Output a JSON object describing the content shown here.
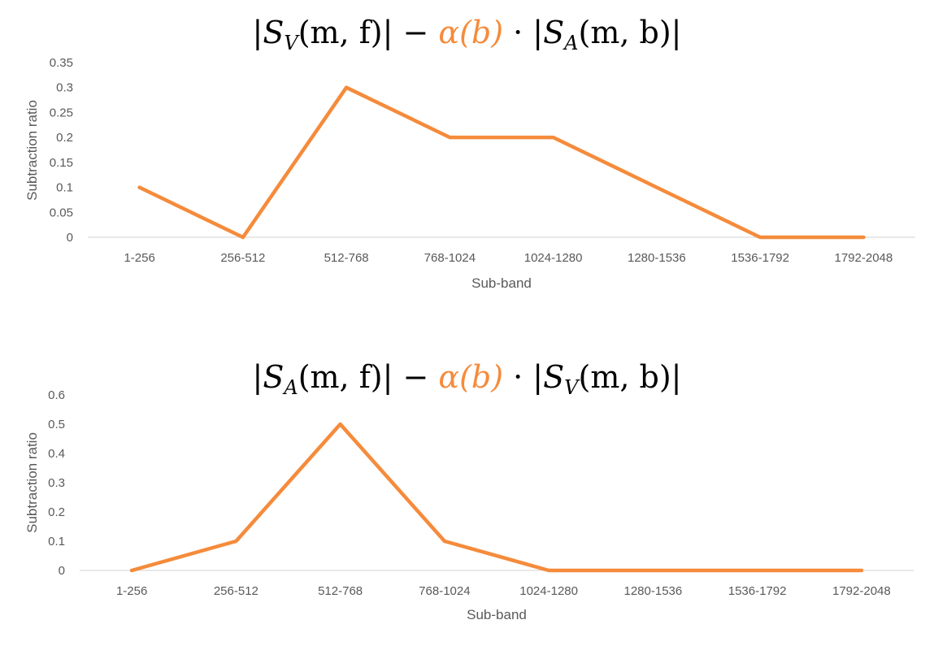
{
  "chart_data": [
    {
      "type": "line",
      "title": {
        "prefix": "|",
        "s1": "S",
        "s1_sub": "V",
        "arg1": "(m, f)| − ",
        "alpha": "α(b)",
        "mid": " · |",
        "s2": "S",
        "s2_sub": "A",
        "arg2": "(m, b)|"
      },
      "xlabel": "Sub-band",
      "ylabel": "Subtraction ratio",
      "categories": [
        "1-256",
        "256-512",
        "512-768",
        "768-1024",
        "1024-1280",
        "1280-1536",
        "1536-1792",
        "1792-2048"
      ],
      "values": [
        0.1,
        0,
        0.3,
        0.2,
        0.2,
        0.1,
        0,
        0
      ],
      "yticks": [
        "0",
        "0.05",
        "0.1",
        "0.15",
        "0.2",
        "0.25",
        "0.3",
        "0.35"
      ],
      "ylim": [
        0,
        0.35
      ],
      "grid": false,
      "line_color": "#f58b3b"
    },
    {
      "type": "line",
      "title": {
        "prefix": "|",
        "s1": "S",
        "s1_sub": "A",
        "arg1": "(m, f)| − ",
        "alpha": "α(b)",
        "mid": " · |",
        "s2": "S",
        "s2_sub": "V",
        "arg2": "(m, b)|"
      },
      "xlabel": "Sub-band",
      "ylabel": "Subtraction ratio",
      "categories": [
        "1-256",
        "256-512",
        "512-768",
        "768-1024",
        "1024-1280",
        "1280-1536",
        "1536-1792",
        "1792-2048"
      ],
      "values": [
        0,
        0.1,
        0.5,
        0.1,
        0,
        0,
        0,
        0
      ],
      "yticks": [
        "0",
        "0.1",
        "0.2",
        "0.3",
        "0.4",
        "0.5",
        "0.6"
      ],
      "ylim": [
        0,
        0.6
      ],
      "grid": false,
      "line_color": "#f58b3b"
    }
  ]
}
